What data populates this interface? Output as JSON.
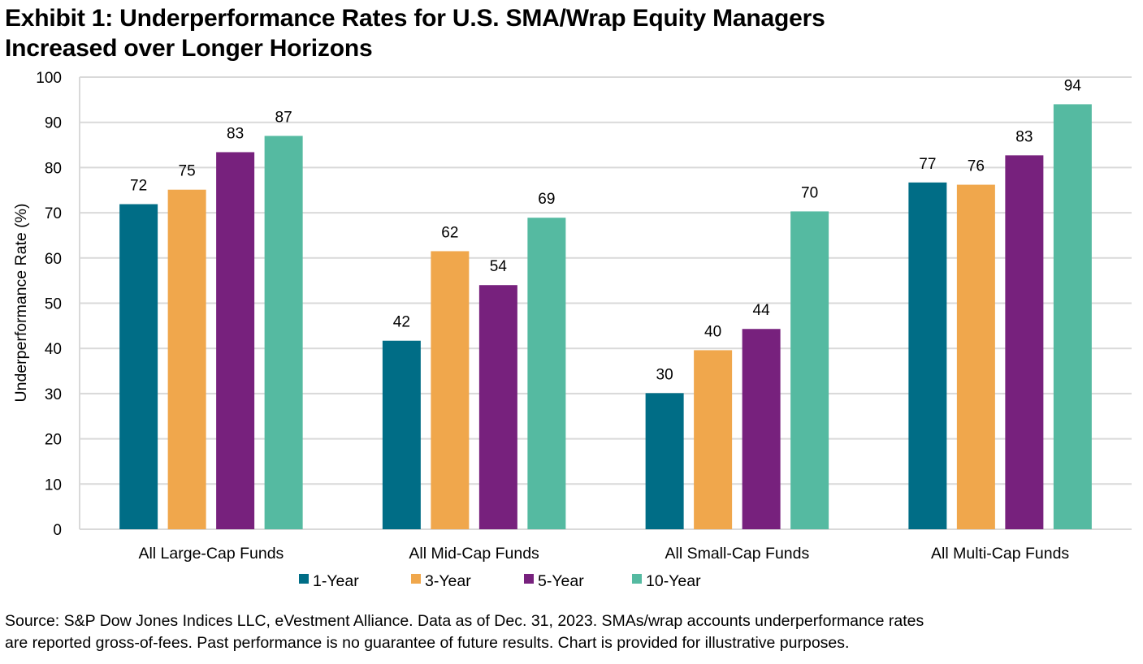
{
  "title_line1": "Exhibit 1: Underperformance Rates for U.S. SMA/Wrap Equity Managers",
  "title_line2": "Increased over Longer Horizons",
  "source_line1": "Source: S&P Dow Jones Indices LLC, eVestment Alliance. Data as of Dec. 31, 2023. SMAs/wrap accounts underperformance rates",
  "source_line2": "are reported gross-of-fees. Past performance is no guarantee of future results. Chart is provided for illustrative purposes.",
  "chart_data": {
    "type": "bar",
    "title": "Exhibit 1: Underperformance Rates for U.S. SMA/Wrap Equity Managers Increased over Longer Horizons",
    "xlabel": "",
    "ylabel": "Underperformance Rate (%)",
    "ylim": [
      0,
      100
    ],
    "yticks": [
      0,
      10,
      20,
      30,
      40,
      50,
      60,
      70,
      80,
      90,
      100
    ],
    "grid": true,
    "legend_position": "bottom",
    "categories": [
      "All Large-Cap Funds",
      "All Mid-Cap Funds",
      "All Small-Cap Funds",
      "All Multi-Cap Funds"
    ],
    "series": [
      {
        "name": "1-Year",
        "color": "#006d86",
        "values": [
          72,
          42,
          30,
          77
        ],
        "exact": [
          71.9,
          41.7,
          30.1,
          76.7
        ]
      },
      {
        "name": "3-Year",
        "color": "#f0a74c",
        "values": [
          75,
          62,
          40,
          76
        ],
        "exact": [
          75.1,
          61.5,
          39.6,
          76.2
        ]
      },
      {
        "name": "5-Year",
        "color": "#77217d",
        "values": [
          83,
          54,
          44,
          83
        ],
        "exact": [
          83.4,
          54.0,
          44.3,
          82.7
        ]
      },
      {
        "name": "10-Year",
        "color": "#55baa1",
        "values": [
          87,
          69,
          70,
          94
        ],
        "exact": [
          87.0,
          68.9,
          70.3,
          94.0
        ]
      }
    ]
  }
}
